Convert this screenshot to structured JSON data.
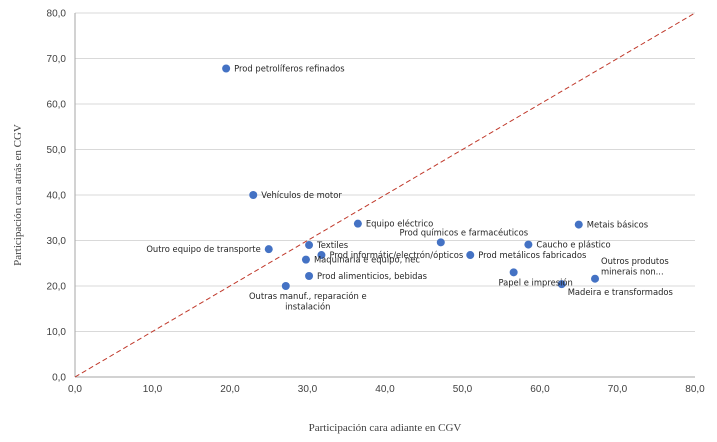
{
  "chart_data": {
    "type": "scatter",
    "title": "",
    "xlabel": "Participación cara adiante en CGV",
    "ylabel": "Participación cara atrás en CGV",
    "xlim": [
      0,
      80
    ],
    "ylim": [
      0,
      80
    ],
    "xticks": [
      "0,0",
      "10,0",
      "20,0",
      "30,0",
      "40,0",
      "50,0",
      "60,0",
      "70,0",
      "80,0"
    ],
    "yticks": [
      "0,0",
      "10,0",
      "20,0",
      "30,0",
      "40,0",
      "50,0",
      "60,0",
      "70,0",
      "80,0"
    ],
    "grid": "horizontal",
    "marker_color": "#4472C4",
    "reference_line": {
      "x": [
        0,
        80
      ],
      "y": [
        0,
        80
      ],
      "style": "dashed",
      "color": "#C0392B"
    },
    "points": [
      {
        "x": 19.5,
        "y": 67.8,
        "label": [
          "Prod petrolíferos refinados"
        ],
        "anchor": "right"
      },
      {
        "x": 23.0,
        "y": 40.0,
        "label": [
          "Vehículos de motor"
        ],
        "anchor": "right"
      },
      {
        "x": 36.5,
        "y": 33.7,
        "label": [
          "Equipo eléctrico"
        ],
        "anchor": "right"
      },
      {
        "x": 65.0,
        "y": 33.5,
        "label": [
          "Metais básicos"
        ],
        "anchor": "right"
      },
      {
        "x": 47.2,
        "y": 29.6,
        "label": [
          "Prod químicos e farmacéuticos"
        ],
        "anchor": "above"
      },
      {
        "x": 58.5,
        "y": 29.1,
        "label": [
          "Caucho e plástico"
        ],
        "anchor": "right"
      },
      {
        "x": 25.0,
        "y": 28.1,
        "label": [
          "Outro equipo de transporte"
        ],
        "anchor": "left"
      },
      {
        "x": 30.2,
        "y": 29.0,
        "label": [
          "Textiles"
        ],
        "anchor": "right"
      },
      {
        "x": 31.8,
        "y": 26.8,
        "label": [
          "Prod informátic/electrón/ópticos"
        ],
        "anchor": "right"
      },
      {
        "x": 51.0,
        "y": 26.8,
        "label": [
          "Prod metálicos fabricados"
        ],
        "anchor": "right"
      },
      {
        "x": 29.8,
        "y": 25.8,
        "label": [
          "Maquinaria e equipo, nec"
        ],
        "anchor": "right"
      },
      {
        "x": 30.2,
        "y": 22.2,
        "label": [
          "Prod alimenticios, bebidas"
        ],
        "anchor": "right"
      },
      {
        "x": 56.6,
        "y": 23.0,
        "label": [
          "Papel e impresión"
        ],
        "anchor": "below"
      },
      {
        "x": 67.1,
        "y": 21.6,
        "label": [
          "Outros produtos",
          "minerais non..."
        ],
        "anchor": "above-right"
      },
      {
        "x": 62.8,
        "y": 20.4,
        "label": [
          "Madeira e transformados"
        ],
        "anchor": "below-right"
      },
      {
        "x": 27.2,
        "y": 20.0,
        "label": [
          "Outras manuf., reparación e",
          "instalación"
        ],
        "anchor": "below"
      }
    ]
  }
}
